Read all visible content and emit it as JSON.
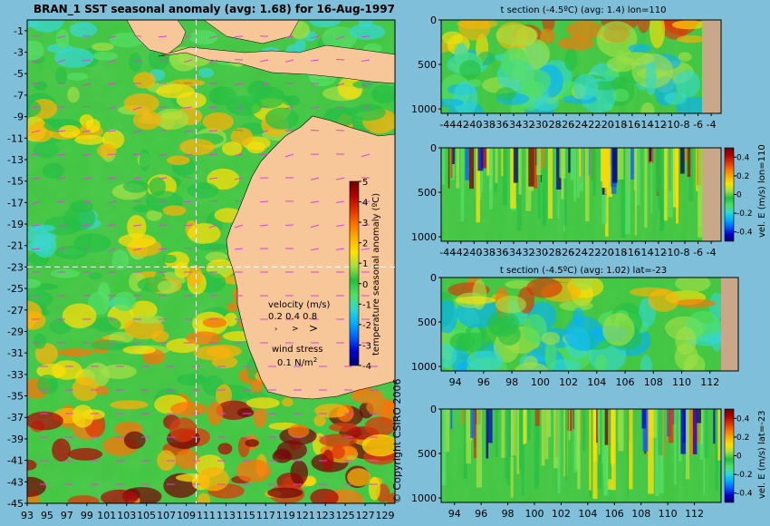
{
  "colors": {
    "background": "#7fbfd9",
    "land_map": "#f7c79a",
    "land_section": "#c8a888",
    "wind_arrows": "#e040e0",
    "colormap": [
      "#000070",
      "#0000d0",
      "#0060ff",
      "#00b0ff",
      "#30d8d0",
      "#50e060",
      "#20c040",
      "#a0e040",
      "#ffe000",
      "#ffb000",
      "#ff7000",
      "#e03000",
      "#b00000",
      "#700000"
    ]
  },
  "map": {
    "title": "BRAN_1  SST seasonal anomaly (avg: 1.68) for 16-Aug-1997",
    "colorbar_label": "temperature seasonal anomaly (ºC)",
    "velocity_label": "velocity (m/s)",
    "velocity_scale": "0.2 0.4 0.8",
    "wind_label": "wind stress",
    "wind_value": "0.1 N/m",
    "wind_unit_sup": "2"
  },
  "copyright": "© Copyright CSIRO 2006",
  "chart_data": [
    {
      "type": "heatmap",
      "title": "BRAN_1  SST seasonal anomaly (avg: 1.68) for 16-Aug-1997",
      "x": [
        93,
        95,
        97,
        99,
        101,
        103,
        105,
        107,
        109,
        111,
        113,
        115,
        117,
        119,
        121,
        123,
        125,
        127,
        129
      ],
      "y": [
        -1,
        -3,
        -5,
        -7,
        -9,
        -11,
        -13,
        -15,
        -17,
        -19,
        -21,
        -23,
        -25,
        -27,
        -29,
        -31,
        -33,
        -35,
        -37,
        -39,
        -41,
        -43,
        -45
      ],
      "xlim": [
        93,
        130
      ],
      "ylim": [
        -45,
        0
      ],
      "crosshair": {
        "lon": 110,
        "lat": -23
      },
      "colorbar": {
        "ticks": [
          5,
          4,
          3,
          2,
          1,
          0,
          -1,
          -2,
          -3,
          -4
        ],
        "range": [
          -4,
          5
        ]
      }
    },
    {
      "type": "heatmap",
      "title": "t section (-4.5ºC) (avg: 1.4) lon=110",
      "x": [
        -44,
        -42,
        -40,
        -38,
        -36,
        -34,
        -32,
        -30,
        -28,
        -26,
        -24,
        -22,
        -20,
        -18,
        -16,
        -14,
        -12,
        -10,
        -8,
        -6,
        -4
      ],
      "y": [
        0,
        500,
        1000
      ],
      "xlim": [
        -45,
        -2.5
      ],
      "ylim": [
        1050,
        0
      ]
    },
    {
      "type": "heatmap",
      "title": "",
      "x": [
        -44,
        -42,
        -40,
        -38,
        -36,
        -34,
        -32,
        -30,
        -28,
        -26,
        -24,
        -22,
        -20,
        -18,
        -16,
        -14,
        -12,
        -10,
        -8,
        -6,
        -4
      ],
      "y": [
        0,
        500,
        1000
      ],
      "xlim": [
        -45,
        -2.5
      ],
      "ylim": [
        1050,
        0
      ],
      "colorbar": {
        "label": "vel. E (m/s) lon=110",
        "ticks": [
          0.4,
          0.2,
          0,
          -0.2,
          -0.4
        ],
        "range": [
          -0.5,
          0.5
        ]
      }
    },
    {
      "type": "heatmap",
      "title": "t section (-4.5ºC) (avg: 1.02) lat=-23",
      "x": [
        94,
        96,
        98,
        100,
        102,
        104,
        106,
        108,
        110,
        112
      ],
      "y": [
        0,
        500,
        1000
      ],
      "xlim": [
        93,
        114
      ],
      "ylim": [
        1050,
        0
      ]
    },
    {
      "type": "heatmap",
      "title": "",
      "x": [
        94,
        96,
        98,
        100,
        102,
        104,
        106,
        108,
        110,
        112
      ],
      "y": [
        0,
        500,
        1000
      ],
      "xlim": [
        93,
        114
      ],
      "ylim": [
        1050,
        0
      ],
      "colorbar": {
        "label": "vel. E (m/s) lat=-23",
        "ticks": [
          0.4,
          0.2,
          0,
          -0.2,
          -0.4
        ],
        "range": [
          -0.5,
          0.5
        ]
      }
    }
  ]
}
